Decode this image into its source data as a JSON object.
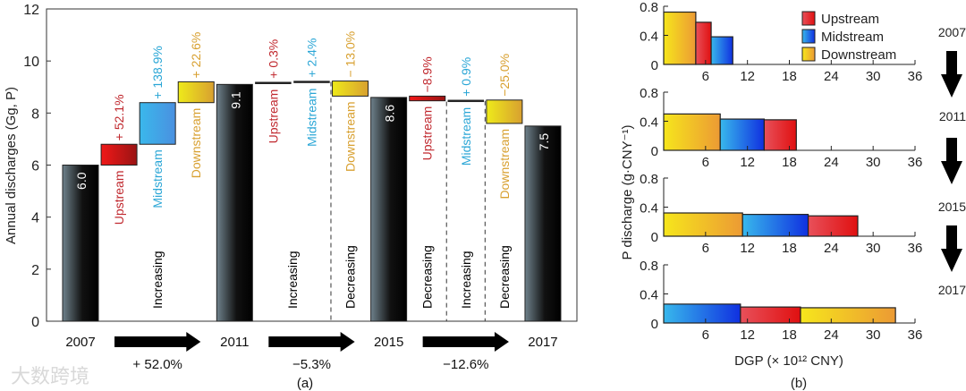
{
  "chart_data": [
    {
      "type": "bar",
      "subtype": "waterfall",
      "panel_label": "(a)",
      "ylabel": "Annual discharges (Gg, P)",
      "ylim": [
        0,
        12
      ],
      "yticks": [
        0,
        2,
        4,
        6,
        8,
        10,
        12
      ],
      "columns": [
        {
          "kind": "total",
          "label": "2007",
          "value": 6.0,
          "value_label": "6.0"
        },
        {
          "kind": "change",
          "region": "Upstream",
          "from": 6.0,
          "to": 6.8,
          "pct": "+ 52.1%",
          "group": 0
        },
        {
          "kind": "change",
          "region": "Midstream",
          "from": 6.8,
          "to": 8.4,
          "pct": "+ 138.9%",
          "group": 0
        },
        {
          "kind": "change",
          "region": "Downstream",
          "from": 8.4,
          "to": 9.2,
          "pct": "+ 22.6%",
          "group": 0
        },
        {
          "kind": "total",
          "label": "2011",
          "value": 9.1,
          "value_label": "9.1"
        },
        {
          "kind": "change",
          "region": "Upstream",
          "from": 9.16,
          "to": 9.19,
          "pct": "+ 0.3%",
          "group": 1
        },
        {
          "kind": "change",
          "region": "Midstream",
          "from": 9.19,
          "to": 9.23,
          "pct": "+ 2.4%",
          "group": 1
        },
        {
          "kind": "change",
          "region": "Downstream",
          "from": 9.23,
          "to": 8.65,
          "pct": "− 13.0%",
          "group": 1
        },
        {
          "kind": "total",
          "label": "2015",
          "value": 8.6,
          "value_label": "8.6"
        },
        {
          "kind": "change",
          "region": "Upstream",
          "from": 8.65,
          "to": 8.47,
          "pct": "−8.9%",
          "group": 2
        },
        {
          "kind": "change",
          "region": "Midstream",
          "from": 8.47,
          "to": 8.5,
          "pct": "+ 0.9%",
          "group": 2
        },
        {
          "kind": "change",
          "region": "Downstream",
          "from": 8.5,
          "to": 7.6,
          "pct": "−25.0%",
          "group": 2
        },
        {
          "kind": "total",
          "label": "2017",
          "value": 7.5,
          "value_label": "7.5"
        }
      ],
      "trend_segments": [
        {
          "label": "Increasing",
          "start": 1,
          "end": 3,
          "dashed_after": false
        },
        {
          "label": "Increasing",
          "start": 5,
          "end": 6,
          "dashed_after": true
        },
        {
          "label": "Decreasing",
          "start": 7,
          "end": 7,
          "dashed_after": false
        },
        {
          "label": "Decreasing",
          "start": 9,
          "end": 9,
          "dashed_after": true
        },
        {
          "label": "Increasing",
          "start": 10,
          "end": 10,
          "dashed_after": true
        },
        {
          "label": "Decreasing",
          "start": 11,
          "end": 11,
          "dashed_after": false
        }
      ],
      "period_changes": [
        {
          "from": "2007",
          "to": "2011",
          "pct": "+ 52.0%"
        },
        {
          "from": "2011",
          "to": "2015",
          "pct": "−5.3%"
        },
        {
          "from": "2015",
          "to": "2017",
          "pct": "−12.6%"
        }
      ]
    },
    {
      "type": "bar",
      "subtype": "variable-width",
      "panel_label": "(b)",
      "ylabel": "P discharge (g·CNY⁻¹)",
      "xlabel": "DGP (× 10¹² CNY)",
      "xlim": [
        0,
        36
      ],
      "xticks": [
        6,
        12,
        18,
        24,
        30,
        36
      ],
      "ylim": [
        0,
        0.8
      ],
      "yticks": [
        "0",
        "0.4",
        "0.8"
      ],
      "legend": {
        "placement": "top-right",
        "entries": [
          "Upstream",
          "Midstream",
          "Downstream"
        ]
      },
      "panels": [
        {
          "year": "2007",
          "bars": [
            {
              "region": "Downstream",
              "x0": 0,
              "x1": 4.6,
              "value": 0.72
            },
            {
              "region": "Upstream",
              "x0": 4.6,
              "x1": 6.8,
              "value": 0.58
            },
            {
              "region": "Midstream",
              "x0": 6.8,
              "x1": 9.9,
              "value": 0.38
            }
          ]
        },
        {
          "year": "2011",
          "bars": [
            {
              "region": "Downstream",
              "x0": 0,
              "x1": 8.1,
              "value": 0.5
            },
            {
              "region": "Midstream",
              "x0": 8.1,
              "x1": 14.4,
              "value": 0.43
            },
            {
              "region": "Upstream",
              "x0": 14.4,
              "x1": 19.0,
              "value": 0.42
            }
          ]
        },
        {
          "year": "2015",
          "bars": [
            {
              "region": "Downstream",
              "x0": 0,
              "x1": 11.3,
              "value": 0.32
            },
            {
              "region": "Midstream",
              "x0": 11.3,
              "x1": 20.7,
              "value": 0.3
            },
            {
              "region": "Upstream",
              "x0": 20.7,
              "x1": 27.8,
              "value": 0.28
            }
          ]
        },
        {
          "year": "2017",
          "bars": [
            {
              "region": "Midstream",
              "x0": 0,
              "x1": 11.0,
              "value": 0.26
            },
            {
              "region": "Upstream",
              "x0": 11.0,
              "x1": 19.6,
              "value": 0.22
            },
            {
              "region": "Downstream",
              "x0": 19.6,
              "x1": 33.2,
              "value": 0.21
            }
          ]
        }
      ]
    }
  ],
  "colors": {
    "Upstream": "#d42a2a",
    "Midstream": "#2ea9d8",
    "Downstream": "#d9a12c",
    "trend": "#000000"
  },
  "watermark": "大数跨境"
}
